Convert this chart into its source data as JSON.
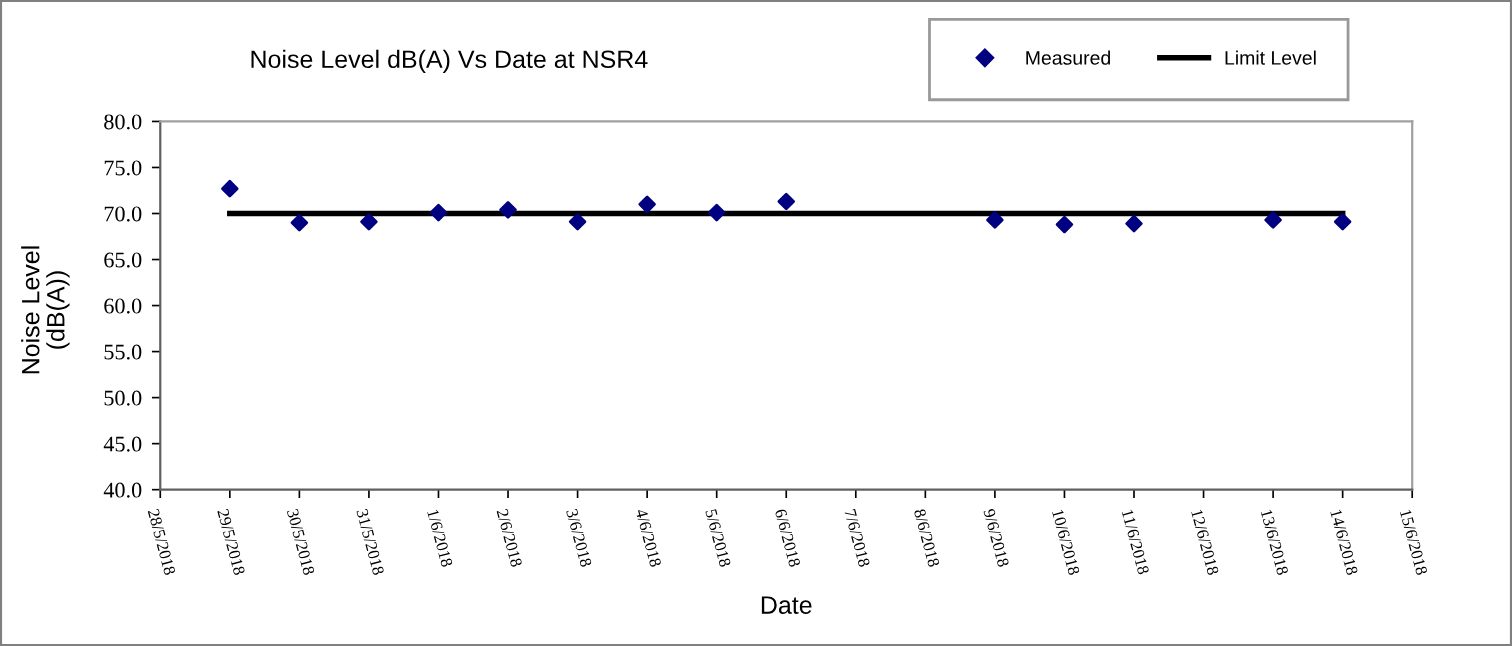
{
  "chart_data": {
    "type": "scatter",
    "title": "Noise Level dB(A) Vs Date at NSR4",
    "xlabel": "Date",
    "ylabel": "Noise Level\n(dB(A))",
    "series": [
      {
        "name": "Measured",
        "color": "#000080",
        "marker": "diamond",
        "x": [
          "2018-05-29",
          "2018-05-30",
          "2018-05-31",
          "2018-06-01",
          "2018-06-02",
          "2018-06-03",
          "2018-06-04",
          "2018-06-05",
          "2018-06-06",
          "2018-06-09",
          "2018-06-10",
          "2018-06-11",
          "2018-06-13",
          "2018-06-14"
        ],
        "values": [
          72.7,
          69.0,
          69.1,
          70.1,
          70.4,
          69.1,
          71.0,
          70.1,
          71.3,
          69.3,
          68.8,
          68.9,
          69.3,
          69.1
        ]
      },
      {
        "name": "Limit Level",
        "type": "line",
        "color": "#000000",
        "marker": "none",
        "line_style": "solid",
        "x": [
          "2018-05-29",
          "2018-06-14"
        ],
        "values": [
          70.0,
          70.0
        ]
      }
    ],
    "xlim": [
      "2018-05-28",
      "2018-06-15"
    ],
    "xticks": [
      {
        "value": "2018-05-28",
        "label": "28/5/2018"
      },
      {
        "value": "2018-05-29",
        "label": "29/5/2018"
      },
      {
        "value": "2018-05-30",
        "label": "30/5/2018"
      },
      {
        "value": "2018-05-31",
        "label": "31/5/2018"
      },
      {
        "value": "2018-06-01",
        "label": "1/6/2018"
      },
      {
        "value": "2018-06-02",
        "label": "2/6/2018"
      },
      {
        "value": "2018-06-03",
        "label": "3/6/2018"
      },
      {
        "value": "2018-06-04",
        "label": "4/6/2018"
      },
      {
        "value": "2018-06-05",
        "label": "5/6/2018"
      },
      {
        "value": "2018-06-06",
        "label": "6/6/2018"
      },
      {
        "value": "2018-06-07",
        "label": "7/6/2018"
      },
      {
        "value": "2018-06-08",
        "label": "8/6/2018"
      },
      {
        "value": "2018-06-09",
        "label": "9/6/2018"
      },
      {
        "value": "2018-06-10",
        "label": "10/6/2018"
      },
      {
        "value": "2018-06-11",
        "label": "11/6/2018"
      },
      {
        "value": "2018-06-12",
        "label": "12/6/2018"
      },
      {
        "value": "2018-06-13",
        "label": "13/6/2018"
      },
      {
        "value": "2018-06-14",
        "label": "14/6/2018"
      },
      {
        "value": "2018-06-15",
        "label": "15/6/2018"
      }
    ],
    "ylim": [
      40,
      80
    ],
    "yticks": [
      {
        "value": 40,
        "label": "40.0"
      },
      {
        "value": 45,
        "label": "45.0"
      },
      {
        "value": 50,
        "label": "50.0"
      },
      {
        "value": 55,
        "label": "55.0"
      },
      {
        "value": 60,
        "label": "60.0"
      },
      {
        "value": 65,
        "label": "65.0"
      },
      {
        "value": 70,
        "label": "70.0"
      },
      {
        "value": 75,
        "label": "75.0"
      },
      {
        "value": 80,
        "label": "80.0"
      }
    ],
    "grid": false,
    "legend": "top right"
  }
}
